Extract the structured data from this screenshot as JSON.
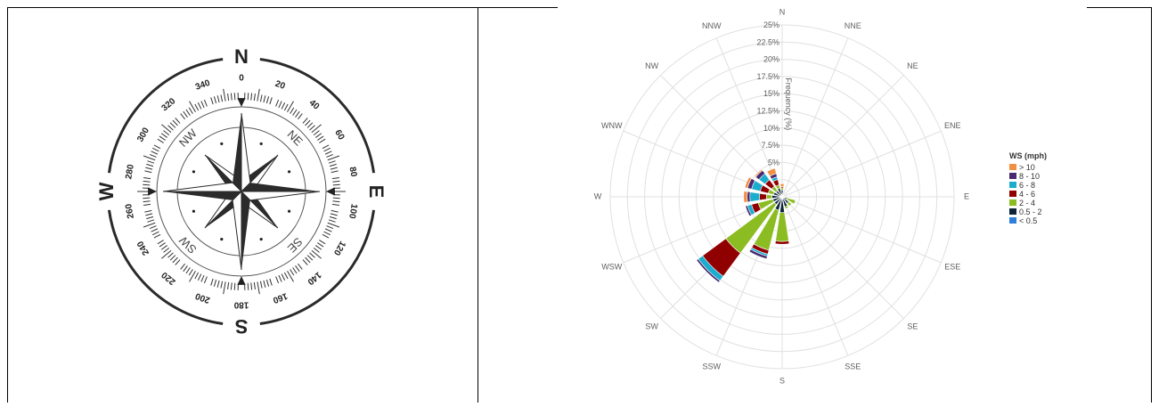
{
  "compass": {
    "cardinals": [
      "N",
      "E",
      "S",
      "W"
    ],
    "intercardinals": [
      "NE",
      "SE",
      "SW",
      "NW"
    ],
    "degree_labels": [
      "0",
      "20",
      "40",
      "60",
      "80",
      "100",
      "120",
      "140",
      "160",
      "180",
      "200",
      "220",
      "240",
      "260",
      "280",
      "300",
      "320",
      "340"
    ],
    "icon": "compass-rose-icon"
  },
  "chart_data": {
    "type": "polar-stacked-bar",
    "title": "",
    "directions": [
      "N",
      "NNE",
      "NE",
      "ENE",
      "E",
      "ESE",
      "SE",
      "SSE",
      "S",
      "SSW",
      "SW",
      "WSW",
      "W",
      "WNW",
      "NW",
      "NNW"
    ],
    "radial_axis_label": "Frequency (%)",
    "radial_ticks": [
      "5%",
      "7.5%",
      "10%",
      "12.5%",
      "15%",
      "17.5%",
      "20%",
      "22.5%",
      "25%"
    ],
    "rlim": [
      0,
      25
    ],
    "legend_title": "WS (mph)",
    "legend_placement": "right",
    "series": [
      {
        "name": "< 0.5",
        "color": "#2f7ed8",
        "values": [
          0.2,
          0.1,
          0,
          0,
          0,
          0,
          0,
          0,
          0.1,
          0.2,
          0.1,
          0.2,
          0.3,
          0.3,
          0.2,
          0.3
        ]
      },
      {
        "name": "0.5 - 2",
        "color": "#0d233a",
        "values": [
          0.8,
          0.3,
          0.2,
          0.2,
          0.3,
          0.8,
          1.2,
          1.5,
          2.2,
          1.8,
          1.3,
          1.2,
          1.2,
          1.0,
          0.9,
          1.0
        ]
      },
      {
        "name": "2 - 4",
        "color": "#8bbc21",
        "values": [
          0.3,
          0.1,
          0.1,
          0.1,
          0.2,
          1.2,
          0.5,
          0.3,
          4.2,
          6.0,
          8.8,
          2.2,
          0.8,
          0.8,
          0.8,
          0.5
        ]
      },
      {
        "name": "4 - 6",
        "color": "#910000",
        "values": [
          0.2,
          0,
          0,
          0,
          0,
          0,
          0,
          0,
          0.4,
          0.6,
          4.2,
          1.0,
          1.0,
          1.2,
          1.2,
          0.8
        ]
      },
      {
        "name": "6 - 8",
        "color": "#1aadce",
        "values": [
          0,
          0,
          0,
          0,
          0,
          0,
          0,
          0,
          0,
          0.3,
          0.8,
          0.6,
          1.4,
          1.3,
          1.1,
          0.4
        ]
      },
      {
        "name": "8 - 10",
        "color": "#492970",
        "values": [
          0,
          0,
          0,
          0,
          0,
          0,
          0,
          0,
          0,
          0.4,
          0.3,
          0.3,
          0.4,
          0.6,
          0.6,
          0.5
        ]
      },
      {
        "name": "> 10",
        "color": "#f28f43",
        "values": [
          0.4,
          0,
          0,
          0,
          0,
          0,
          0,
          0,
          0,
          0,
          0,
          0,
          0.5,
          0.4,
          0.2,
          0.8
        ]
      }
    ]
  }
}
